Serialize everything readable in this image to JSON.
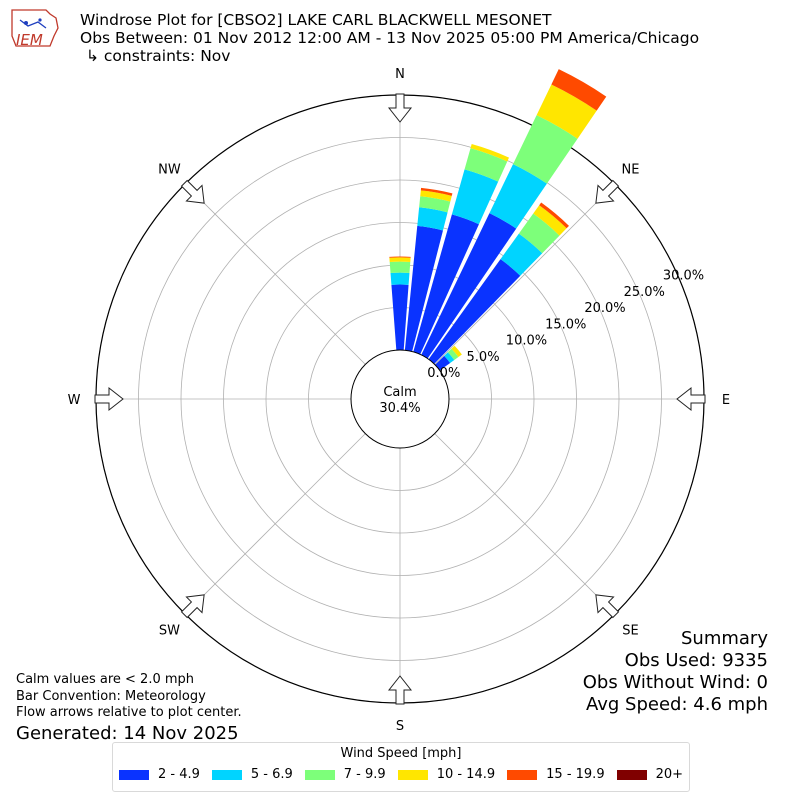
{
  "logo": {
    "text": "IEM"
  },
  "header": {
    "title": "Windrose Plot for [CBSO2] LAKE CARL BLACKWELL MESONET",
    "period": "Obs Between: 01 Nov 2012 12:00 AM - 13 Nov 2025 05:00 PM America/Chicago",
    "constraints": "↳ constraints: Nov"
  },
  "calm": {
    "label": "Calm",
    "value": "30.4%"
  },
  "summary": {
    "heading": "Summary",
    "obs_used": "Obs Used: 9335",
    "obs_without_wind": "Obs Without Wind: 0",
    "avg_speed": "Avg Speed: 4.6 mph"
  },
  "notes": {
    "calm_note": "Calm values are < 2.0 mph",
    "bar_convention": "Bar Convention: Meteorology",
    "flow_arrows": "Flow arrows relative to plot center.",
    "generated": "Generated: 14 Nov 2025"
  },
  "legend": {
    "title": "Wind Speed [mph]"
  },
  "chart_data": {
    "type": "windrose",
    "directions_deg": [
      0,
      10,
      20,
      30,
      40,
      50
    ],
    "radial_ticks": [
      "0.0%",
      "5.0%",
      "10.0%",
      "15.0%",
      "20.0%",
      "25.0%",
      "30.0%"
    ],
    "radial_range": [
      0,
      30
    ],
    "grid": true,
    "compass_labels": [
      "N",
      "NE",
      "E",
      "SE",
      "S",
      "SW",
      "W",
      "NW"
    ],
    "series": [
      {
        "name": "2 - 4.9",
        "color": "#0a33ff",
        "values": [
          7.7,
          14.7,
          16.8,
          18.5,
          14.5,
          1.5
        ]
      },
      {
        "name": "5 - 6.9",
        "color": "#00d4ff",
        "values": [
          1.4,
          2.2,
          5.5,
          6.4,
          3.7,
          0.6
        ]
      },
      {
        "name": "7 - 9.9",
        "color": "#7dff7a",
        "values": [
          1.3,
          1.3,
          2.6,
          6.4,
          2.9,
          0.6
        ]
      },
      {
        "name": "10 - 14.9",
        "color": "#ffe600",
        "values": [
          0.5,
          0.7,
          0.5,
          4.0,
          1.2,
          0.5
        ]
      },
      {
        "name": "15 - 19.9",
        "color": "#ff4a00",
        "values": [
          0.1,
          0.3,
          0.0,
          2.0,
          0.4,
          0.0
        ]
      },
      {
        "name": "20+",
        "color": "#800000",
        "values": [
          0.0,
          0.0,
          0.0,
          0.0,
          0.0,
          0.0
        ]
      }
    ]
  }
}
